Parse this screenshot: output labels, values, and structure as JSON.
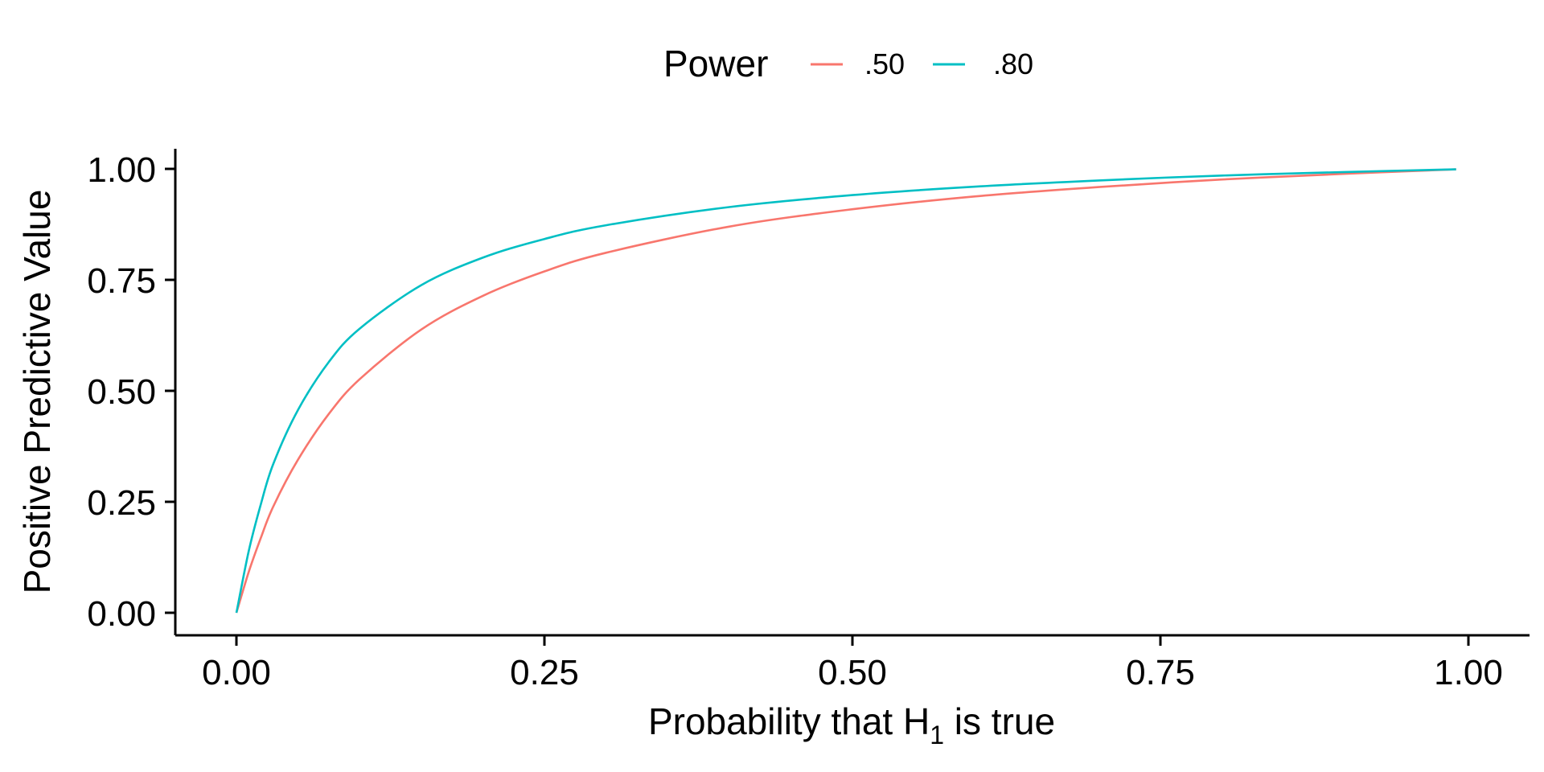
{
  "chart_data": {
    "type": "line",
    "title": "",
    "xlabel": "Probability that H",
    "xlabel_subscript": "1",
    "xlabel_suffix": " is true",
    "ylabel": "Positive Predictive Value",
    "xlim": [
      0,
      1
    ],
    "ylim": [
      0,
      1
    ],
    "x_ticks": [
      0,
      0.25,
      0.5,
      0.75,
      1.0
    ],
    "x_tick_labels": [
      "0.00",
      "0.25",
      "0.50",
      "0.75",
      "1.00"
    ],
    "y_ticks": [
      0,
      0.25,
      0.5,
      0.75,
      1.0
    ],
    "y_tick_labels": [
      "0.00",
      "0.25",
      "0.50",
      "0.75",
      "1.00"
    ],
    "grid": false,
    "legend": {
      "title": "Power",
      "position": "top"
    },
    "x": [
      0,
      0.01,
      0.02,
      0.03,
      0.05,
      0.075,
      0.1,
      0.15,
      0.2,
      0.25,
      0.3,
      0.4,
      0.5,
      0.6,
      0.7,
      0.8,
      0.9,
      0.99
    ],
    "series": [
      {
        "name": ".50",
        "color": "#F8766D",
        "values": [
          0.0,
          0.092,
          0.17,
          0.24,
          0.345,
          0.448,
          0.526,
          0.638,
          0.714,
          0.769,
          0.811,
          0.87,
          0.909,
          0.938,
          0.959,
          0.976,
          0.989,
          0.999
        ]
      },
      {
        "name": ".80",
        "color": "#00BFC4",
        "values": [
          0.0,
          0.139,
          0.246,
          0.336,
          0.457,
          0.565,
          0.64,
          0.738,
          0.8,
          0.842,
          0.873,
          0.914,
          0.941,
          0.96,
          0.974,
          0.985,
          0.993,
          0.999
        ]
      }
    ]
  }
}
